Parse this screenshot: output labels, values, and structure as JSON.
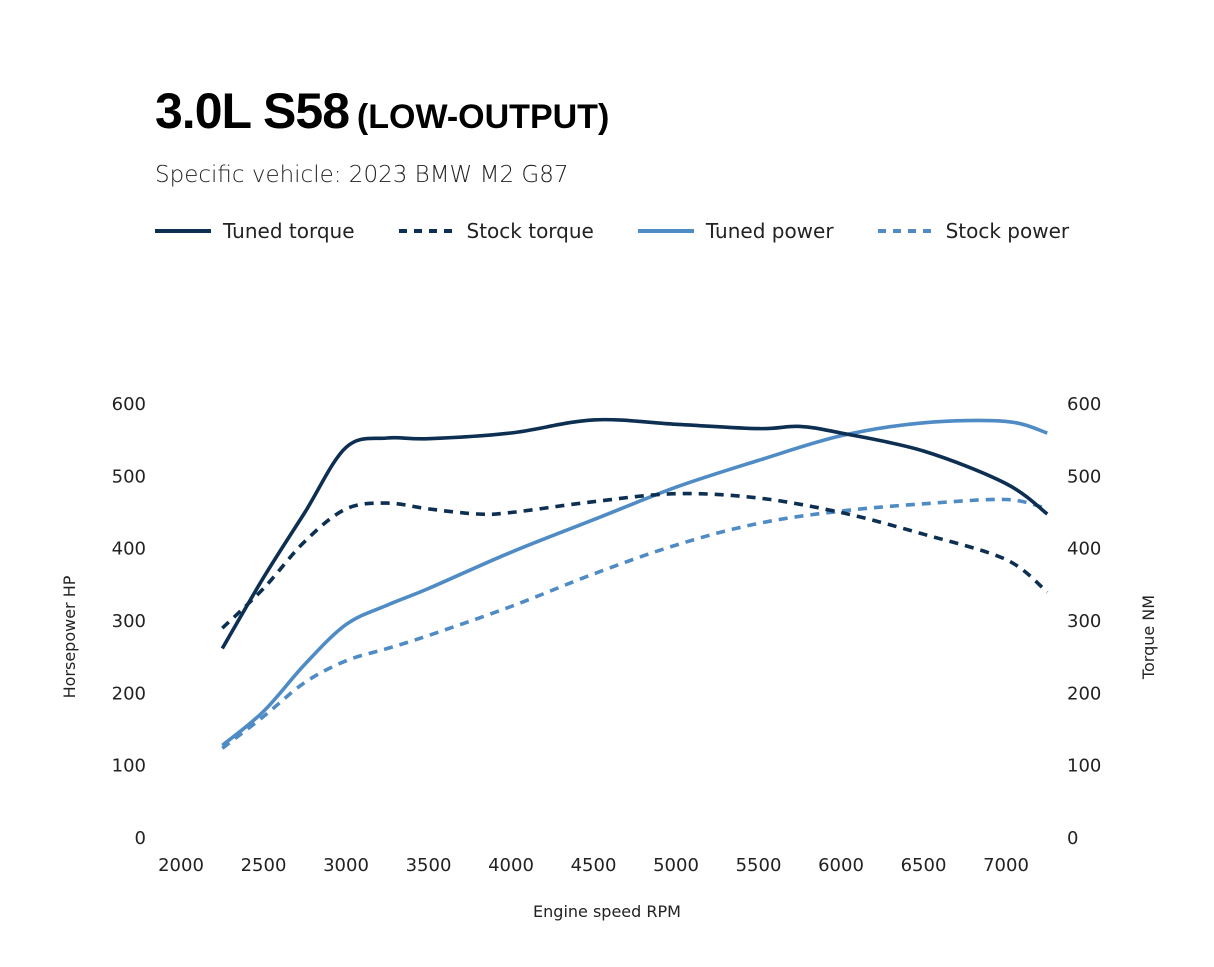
{
  "header": {
    "title_main": "3.0L S58",
    "title_paren": "(LOW-OUTPUT)",
    "subtitle": "Specific vehicle: 2023 BMW M2 G87"
  },
  "legend": [
    {
      "label": "Tuned torque",
      "color": "#0d2f52",
      "dashed": false
    },
    {
      "label": "Stock torque",
      "color": "#0d2f52",
      "dashed": true
    },
    {
      "label": "Tuned power",
      "color": "#4f8bc4",
      "dashed": false
    },
    {
      "label": "Stock power",
      "color": "#4f8bc4",
      "dashed": true
    }
  ],
  "chart_data": {
    "type": "line",
    "xlabel": "Engine speed RPM",
    "ylabel_left": "Horsepower HP",
    "ylabel_right": "Torque NM",
    "xlim": [
      2000,
      7250
    ],
    "ylim": [
      0,
      600
    ],
    "x_ticks": [
      "2000",
      "2500",
      "3000",
      "3500",
      "4000",
      "4500",
      "5000",
      "5500",
      "6000",
      "6500",
      "7000"
    ],
    "y_ticks_left": [
      "0",
      "100",
      "200",
      "300",
      "400",
      "500",
      "600"
    ],
    "y_ticks_right": [
      "0",
      "100",
      "200",
      "300",
      "400",
      "500",
      "600"
    ],
    "grid": false,
    "legend_position": "top",
    "series": [
      {
        "name": "Tuned torque",
        "color": "#0d2f52",
        "dashed": false,
        "x": [
          2250,
          2500,
          2750,
          3000,
          3250,
          3500,
          4000,
          4500,
          5000,
          5500,
          5750,
          6000,
          6500,
          7000,
          7250
        ],
        "values": [
          262,
          360,
          450,
          540,
          553,
          552,
          560,
          578,
          572,
          566,
          569,
          560,
          535,
          490,
          448
        ]
      },
      {
        "name": "Stock torque",
        "color": "#0d2f52",
        "dashed": true,
        "x": [
          2250,
          2500,
          2750,
          3000,
          3250,
          3500,
          3800,
          4000,
          4500,
          5000,
          5500,
          6000,
          6500,
          7000,
          7250
        ],
        "values": [
          290,
          345,
          410,
          455,
          463,
          455,
          448,
          450,
          465,
          476,
          470,
          450,
          420,
          385,
          340
        ]
      },
      {
        "name": "Tuned power",
        "color": "#4f8bc4",
        "dashed": false,
        "x": [
          2250,
          2500,
          2750,
          3000,
          3250,
          3500,
          4000,
          4500,
          5000,
          5500,
          6000,
          6500,
          7000,
          7250
        ],
        "values": [
          128,
          175,
          240,
          295,
          322,
          345,
          395,
          440,
          485,
          522,
          556,
          574,
          576,
          560
        ]
      },
      {
        "name": "Stock power",
        "color": "#4f8bc4",
        "dashed": true,
        "x": [
          2250,
          2500,
          2750,
          3000,
          3250,
          3500,
          4000,
          4500,
          5000,
          5500,
          6000,
          6500,
          7000,
          7250
        ],
        "values": [
          124,
          168,
          215,
          245,
          262,
          280,
          320,
          365,
          405,
          435,
          452,
          462,
          468,
          455
        ]
      }
    ]
  }
}
